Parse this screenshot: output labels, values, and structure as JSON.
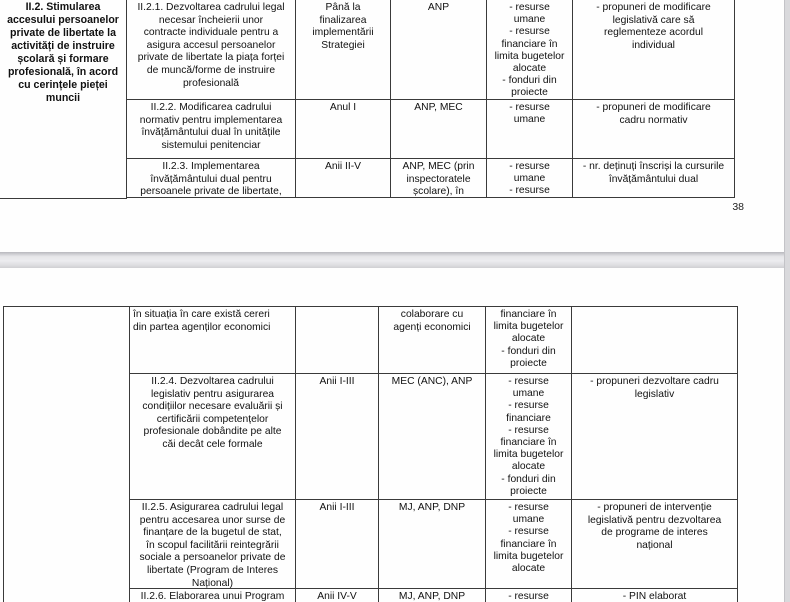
{
  "document": {
    "page1": {
      "page_number": "38",
      "objective": "II.2. Stimularea\naccesului persoanelor\nprivate de libertate la\nactivități de instruire\nșcolară și formare\nprofesională, în acord\ncu cerințele pieței\nmuncii",
      "rows": [
        {
          "measure": "II.2.1. Dezvoltarea cadrului legal\nnecesar încheierii unor\ncontracte individuale pentru a\nasigura accesul persoanelor\nprivate de libertate la piața forței\nde muncă/forme de instruire\nprofesională",
          "term": "Până la\nfinalizarea\nimplementării\nStrategiei",
          "responsible": "ANP",
          "resources": "- resurse\numane\n- resurse\nfinanciare în\nlimita bugetelor\nalocate\n- fonduri din\nproiecte",
          "indicators": "- propuneri de modificare\nlegislativă care să\nreglementeze acordul\nindividual"
        },
        {
          "measure": "II.2.2. Modificarea cadrului\nnormativ pentru implementarea\nînvățământului dual în unitățile\nsistemului penitenciar",
          "term": "Anul I",
          "responsible": "ANP, MEC",
          "resources": "- resurse\numane",
          "indicators": "- propuneri de modificare\ncadru normativ"
        },
        {
          "measure": "II.2.3. Implementarea\nînvățământului dual pentru\npersoanele private de libertate,",
          "term": "Anii II-V",
          "responsible": "ANP, MEC (prin\ninspectoratele\nșcolare), în",
          "resources": "- resurse\numane\n- resurse",
          "indicators": "- nr. deținuți înscriși la cursurile\nînvățământului dual"
        }
      ]
    },
    "page2": {
      "rows": [
        {
          "measure": "în situația în care există cereri\ndin partea agenților economici",
          "term": "",
          "responsible": "colaborare cu\nagenți economici",
          "resources": "financiare în\nlimita bugetelor\nalocate\n- fonduri din\nproiecte",
          "indicators": ""
        },
        {
          "measure": "II.2.4. Dezvoltarea cadrului\nlegislativ pentru asigurarea\ncondițiilor necesare evaluării și\ncertificării competențelor\nprofesionale dobândite pe alte\ncăi decât cele formale",
          "term": "Anii I-III",
          "responsible": "MEC (ANC), ANP",
          "resources": "- resurse\numane\n- resurse\nfinanciare\n- resurse\nfinanciare în\nlimita bugetelor\nalocate\n- fonduri din\nproiecte",
          "indicators": "- propuneri dezvoltare cadru\nlegislativ"
        },
        {
          "measure": "II.2.5. Asigurarea cadrului legal\npentru accesarea unor surse de\nfinanțare de la bugetul de stat,\nîn scopul facilitării reintegrării\nsociale a persoanelor private de\nlibertate (Program de Interes\nNațional)",
          "term": "Anii I-III",
          "responsible": "MJ, ANP, DNP",
          "resources": "- resurse\numane\n- resurse\nfinanciare în\nlimita bugetelor\nalocate",
          "indicators": "- propuneri de intervenție\nlegislativă pentru dezvoltarea\nde programe de interes\nnațional"
        },
        {
          "measure": "II.2.6. Elaborarea unui Program",
          "term": "Anii IV-V",
          "responsible": "MJ, ANP, DNP",
          "resources": "- resurse",
          "indicators": "- PIN elaborat"
        }
      ]
    }
  }
}
